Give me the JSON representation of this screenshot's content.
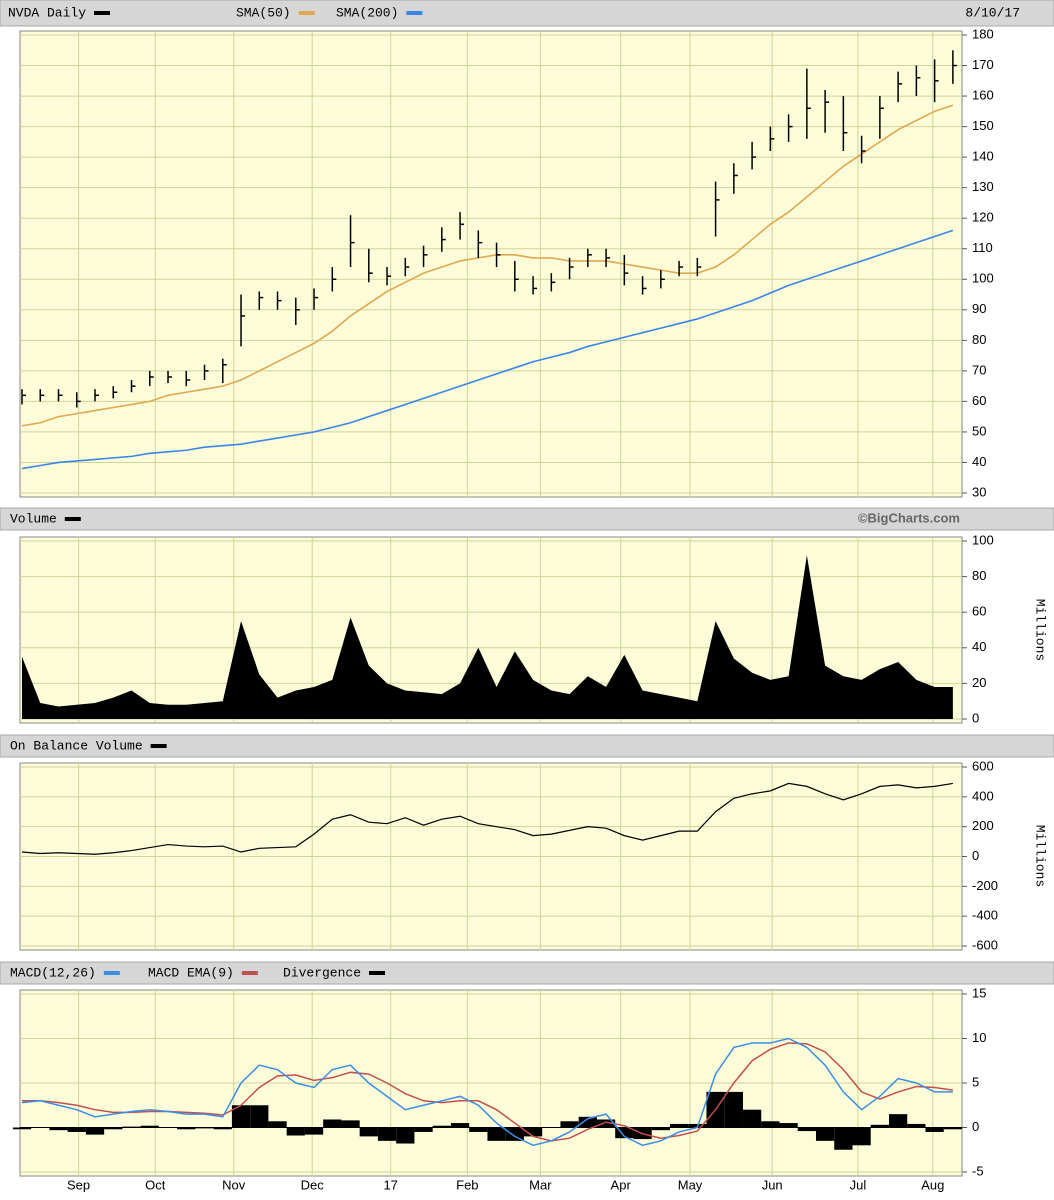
{
  "chart_data": [
    {
      "type": "ohlc",
      "title": "NVDA Daily",
      "date": "8/10/17",
      "color": "#000000",
      "x": [
        0,
        1,
        2,
        3,
        4,
        5,
        6,
        7,
        8,
        9,
        10,
        11,
        12,
        13,
        14,
        15,
        16,
        17,
        18,
        19,
        20,
        21,
        22,
        23,
        24,
        25,
        26,
        27,
        28,
        29,
        30,
        31,
        32,
        33,
        34,
        35,
        36,
        37,
        38,
        39,
        40,
        41,
        42,
        43,
        44,
        45,
        46,
        47,
        48,
        49,
        50,
        51
      ],
      "xlim": [
        0,
        51.5
      ],
      "high": [
        64,
        64,
        64,
        63,
        64,
        65,
        67,
        70,
        70,
        70,
        72,
        74,
        95,
        96,
        96,
        94,
        97,
        104,
        121,
        110,
        104,
        107,
        111,
        117,
        122,
        116,
        112,
        106,
        101,
        102,
        107,
        110,
        110,
        108,
        101,
        103,
        106,
        107,
        132,
        138,
        145,
        150,
        154,
        169,
        162,
        160,
        147,
        160,
        168,
        170,
        172,
        175
      ],
      "low": [
        59,
        60,
        60,
        58,
        60,
        61,
        63,
        65,
        66,
        65,
        67,
        66,
        78,
        90,
        90,
        85,
        90,
        96,
        104,
        99,
        98,
        101,
        104,
        109,
        113,
        107,
        104,
        96,
        95,
        96,
        100,
        104,
        104,
        98,
        95,
        97,
        101,
        101,
        114,
        128,
        136,
        142,
        145,
        146,
        148,
        142,
        138,
        146,
        158,
        160,
        158,
        164
      ],
      "close": [
        62,
        62,
        62,
        60,
        62,
        63,
        65,
        68,
        68,
        67,
        70,
        72,
        88,
        94,
        93,
        90,
        94,
        100,
        112,
        102,
        101,
        104,
        108,
        113,
        118,
        112,
        108,
        100,
        97,
        99,
        104,
        108,
        107,
        102,
        97,
        100,
        104,
        104,
        126,
        134,
        140,
        146,
        150,
        156,
        158,
        148,
        142,
        156,
        164,
        166,
        165,
        170
      ],
      "series": [
        {
          "name": "SMA(50)",
          "color": "#e0a850",
          "values": [
            52,
            53,
            55,
            56,
            57,
            58,
            59,
            60,
            62,
            63,
            64,
            65,
            67,
            70,
            73,
            76,
            79,
            83,
            88,
            92,
            96,
            99,
            102,
            104,
            106,
            107,
            108,
            108,
            107,
            107,
            106,
            106,
            106,
            105,
            104,
            103,
            102,
            102,
            104,
            108,
            113,
            118,
            122,
            127,
            132,
            137,
            141,
            145,
            149,
            152,
            155,
            157
          ]
        },
        {
          "name": "SMA(200)",
          "color": "#3a86e8",
          "values": [
            38,
            39,
            40,
            40.5,
            41,
            41.5,
            42,
            43,
            43.5,
            44,
            45,
            45.5,
            46,
            47,
            48,
            49,
            50,
            51.5,
            53,
            55,
            57,
            59,
            61,
            63,
            65,
            67,
            69,
            71,
            73,
            74.5,
            76,
            78,
            79.5,
            81,
            82.5,
            84,
            85.5,
            87,
            89,
            91,
            93,
            95.5,
            98,
            100,
            102,
            104,
            106,
            108,
            110,
            112,
            114,
            116
          ]
        }
      ],
      "ylim": [
        30,
        180
      ],
      "yticks": [
        30,
        40,
        50,
        60,
        70,
        80,
        90,
        100,
        110,
        120,
        130,
        140,
        150,
        160,
        170,
        180
      ]
    },
    {
      "type": "area",
      "title": "Volume",
      "credit": "©BigCharts.com",
      "y_label": "Millions",
      "color": "#000000",
      "values": [
        35,
        9,
        7,
        8,
        9,
        12,
        16,
        9,
        8,
        8,
        9,
        10,
        55,
        25,
        12,
        16,
        18,
        22,
        57,
        30,
        20,
        16,
        15,
        14,
        20,
        40,
        18,
        38,
        22,
        16,
        14,
        24,
        18,
        36,
        16,
        14,
        12,
        10,
        55,
        34,
        26,
        22,
        24,
        92,
        30,
        24,
        22,
        28,
        32,
        22,
        18,
        18
      ],
      "ylim": [
        0,
        100
      ],
      "yticks": [
        0,
        20,
        40,
        60,
        80,
        100
      ]
    },
    {
      "type": "line",
      "title": "On Balance Volume",
      "y_label": "Millions",
      "color": "#000000",
      "values": [
        30,
        20,
        25,
        20,
        15,
        25,
        40,
        60,
        80,
        70,
        65,
        70,
        30,
        55,
        60,
        65,
        150,
        250,
        280,
        230,
        220,
        260,
        210,
        250,
        270,
        220,
        200,
        180,
        140,
        150,
        175,
        200,
        190,
        140,
        110,
        140,
        170,
        170,
        300,
        390,
        420,
        440,
        490,
        470,
        420,
        380,
        420,
        470,
        480,
        460,
        470,
        490
      ],
      "ylim": [
        -600,
        600
      ],
      "yticks": [
        -600,
        -400,
        -200,
        0,
        200,
        400,
        600
      ]
    },
    {
      "type": "macd",
      "series": [
        {
          "name": "MACD(12,26)",
          "color": "#3a8ee6",
          "values": [
            2.8,
            3,
            2.5,
            2,
            1.2,
            1.5,
            1.8,
            2,
            1.8,
            1.5,
            1.5,
            1.2,
            5,
            7,
            6.5,
            5,
            4.5,
            6.5,
            7,
            5,
            3.5,
            2,
            2.5,
            3,
            3.5,
            2.5,
            0.5,
            -1,
            -2,
            -1.5,
            -0.5,
            1,
            1.5,
            -1,
            -2,
            -1.5,
            -0.5,
            0,
            6,
            9,
            9.5,
            9.5,
            10,
            9,
            7,
            4,
            2,
            3.5,
            5.5,
            5,
            4,
            4
          ]
        },
        {
          "name": "MACD EMA(9)",
          "color": "#c0504d",
          "values": [
            3,
            3,
            2.8,
            2.5,
            2,
            1.7,
            1.7,
            1.8,
            1.8,
            1.7,
            1.6,
            1.4,
            2.5,
            4.5,
            5.8,
            5.9,
            5.3,
            5.6,
            6.2,
            6,
            5,
            3.8,
            3,
            2.8,
            3,
            3,
            2,
            0.5,
            -1,
            -1.5,
            -1.2,
            -0.2,
            0.6,
            0.2,
            -0.7,
            -1.2,
            -0.9,
            -0.4,
            2,
            5,
            7.5,
            8.8,
            9.5,
            9.4,
            8.5,
            6.5,
            4,
            3.2,
            4,
            4.6,
            4.5,
            4.2
          ]
        },
        {
          "name": "Divergence",
          "color": "#000000",
          "values": [
            -0.2,
            0,
            -0.3,
            -0.5,
            -0.8,
            -0.2,
            0.1,
            0.2,
            0,
            -0.2,
            -0.1,
            -0.2,
            2.5,
            2.5,
            0.7,
            -0.9,
            -0.8,
            0.9,
            0.8,
            -1,
            -1.5,
            -1.8,
            -0.5,
            0.2,
            0.5,
            -0.5,
            -1.5,
            -1.5,
            -1,
            0,
            0.7,
            1.2,
            0.9,
            -1.2,
            -1.3,
            -0.3,
            0.4,
            0.4,
            4,
            4,
            2,
            0.7,
            0.5,
            -0.4,
            -1.5,
            -2.5,
            -2,
            0.3,
            1.5,
            0.4,
            -0.5,
            -0.2
          ]
        }
      ],
      "ylim": [
        -5,
        15
      ],
      "yticks": [
        -5,
        0,
        5,
        10,
        15
      ],
      "xticks": [
        {
          "value": 3.1,
          "label": "Sep"
        },
        {
          "value": 7.3,
          "label": "Oct"
        },
        {
          "value": 11.6,
          "label": "Nov"
        },
        {
          "value": 15.9,
          "label": "Dec"
        },
        {
          "value": 20.2,
          "label": "17"
        },
        {
          "value": 24.4,
          "label": "Feb"
        },
        {
          "value": 28.4,
          "label": "Mar"
        },
        {
          "value": 32.8,
          "label": "Apr"
        },
        {
          "value": 36.6,
          "label": "May"
        },
        {
          "value": 41.1,
          "label": "Jun"
        },
        {
          "value": 45.8,
          "label": "Jul"
        },
        {
          "value": 49.9,
          "label": "Aug"
        }
      ]
    }
  ]
}
